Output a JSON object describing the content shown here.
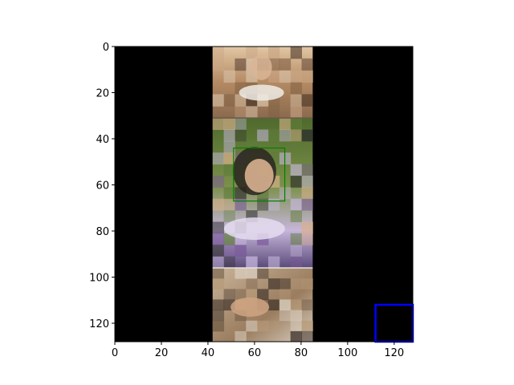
{
  "chart_data": {
    "type": "image",
    "xlim": [
      0,
      128
    ],
    "ylim": [
      128,
      0
    ],
    "xticks": [
      0,
      20,
      40,
      60,
      80,
      100,
      120
    ],
    "yticks": [
      0,
      20,
      40,
      60,
      80,
      100,
      120
    ],
    "background": "#000000",
    "panels": [
      {
        "name": "man-photo",
        "x0": 42,
        "x1": 85,
        "y0": 0,
        "y1": 31,
        "colors": [
          "#c9a585",
          "#7a5a3e",
          "#d8c2a8",
          "#4a3426"
        ]
      },
      {
        "name": "girl-photo",
        "x0": 42,
        "x1": 85,
        "y0": 31,
        "y1": 96,
        "colors": [
          "#5f7c3a",
          "#2b2b2b",
          "#d9b08c",
          "#c8b8df",
          "#7a5a9a"
        ]
      },
      {
        "name": "hands-photo",
        "x0": 42,
        "x1": 85,
        "y0": 96,
        "y1": 128,
        "colors": [
          "#b79a78",
          "#6f5a44",
          "#e0d6c8",
          "#3d3028"
        ]
      }
    ],
    "boxes": [
      {
        "color": "#008000",
        "x0": 51,
        "x1": 73,
        "y0": 44,
        "y1": 67
      },
      {
        "color": "#0000ff",
        "x0": 112,
        "x1": 128,
        "y0": 112,
        "y1": 128
      }
    ]
  }
}
